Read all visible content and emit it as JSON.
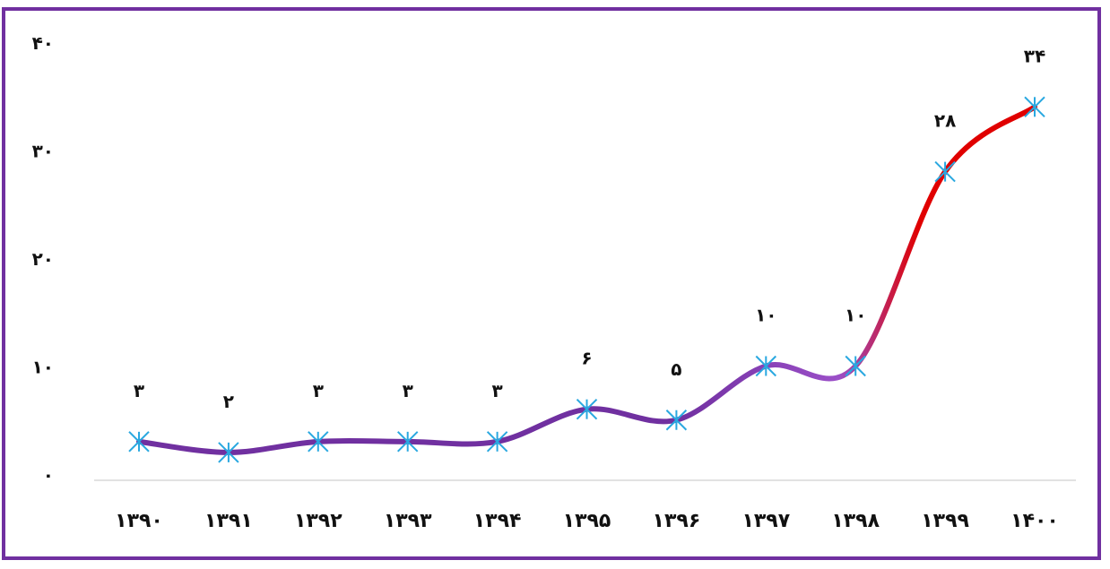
{
  "chart_data": {
    "type": "line",
    "title": "",
    "xlabel": "",
    "ylabel": "",
    "categories": [
      "۱۳۹۰",
      "۱۳۹۱",
      "۱۳۹۲",
      "۱۳۹۳",
      "۱۳۹۴",
      "۱۳۹۵",
      "۱۳۹۶",
      "۱۳۹۷",
      "۱۳۹۸",
      "۱۳۹۹",
      "۱۴۰۰"
    ],
    "series": [
      {
        "values": [
          3,
          2,
          3,
          3,
          3,
          6,
          5,
          10,
          10,
          28,
          34
        ],
        "value_labels": [
          "۳",
          "۲",
          "۳",
          "۳",
          "۳",
          "۶",
          "۵",
          "۱۰",
          "۱۰",
          "۲۸",
          "۳۴"
        ]
      }
    ],
    "ylim": [
      0,
      40
    ],
    "yticks": [
      0,
      10,
      20,
      30,
      40
    ],
    "ytick_labels": [
      "۰",
      "۱۰",
      "۲۰",
      "۳۰",
      "۴۰"
    ],
    "grid": false,
    "legend": "none",
    "smooth": true,
    "marker": "asterisk",
    "colors": {
      "line_start": "#7030a0",
      "line_mid": "#9b4fc8",
      "line_end": "#e00000",
      "marker": "#29a8e0",
      "frame": "#7030a0",
      "axis": "#d9d9d9"
    }
  }
}
